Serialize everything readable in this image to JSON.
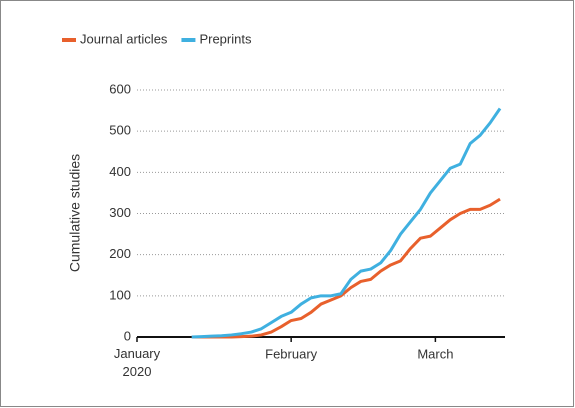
{
  "chart_data": {
    "type": "line",
    "ylabel": "Cumulative studies",
    "x": [
      11,
      13,
      15,
      17,
      19,
      21,
      23,
      25,
      27,
      29,
      31,
      33,
      35,
      37,
      39,
      41,
      43,
      45,
      47,
      49,
      51,
      53,
      55,
      57,
      59,
      61,
      63,
      65,
      67,
      69,
      71,
      73
    ],
    "series": [
      {
        "name": "Journal articles",
        "color": "#e8602c",
        "values": [
          0,
          0,
          0,
          0,
          0,
          1,
          2,
          5,
          12,
          25,
          40,
          45,
          60,
          80,
          90,
          100,
          120,
          135,
          140,
          160,
          175,
          185,
          215,
          240,
          245,
          265,
          285,
          300,
          310,
          310,
          320,
          335
        ]
      },
      {
        "name": "Preprints",
        "color": "#3fb0e0",
        "values": [
          0,
          1,
          2,
          3,
          5,
          8,
          12,
          20,
          35,
          50,
          60,
          80,
          95,
          100,
          100,
          105,
          140,
          160,
          165,
          180,
          210,
          250,
          280,
          310,
          350,
          380,
          410,
          420,
          470,
          490,
          520,
          555
        ]
      }
    ],
    "xlim": [
      0,
      74
    ],
    "xticks": [
      {
        "value": 0,
        "label": "January 2020"
      },
      {
        "value": 31,
        "label": "February"
      },
      {
        "value": 60,
        "label": "March"
      }
    ],
    "ylim": [
      0,
      600
    ],
    "yticks": [
      0,
      100,
      200,
      300,
      400,
      500,
      600
    ],
    "grid": true,
    "legend": "top-left"
  }
}
